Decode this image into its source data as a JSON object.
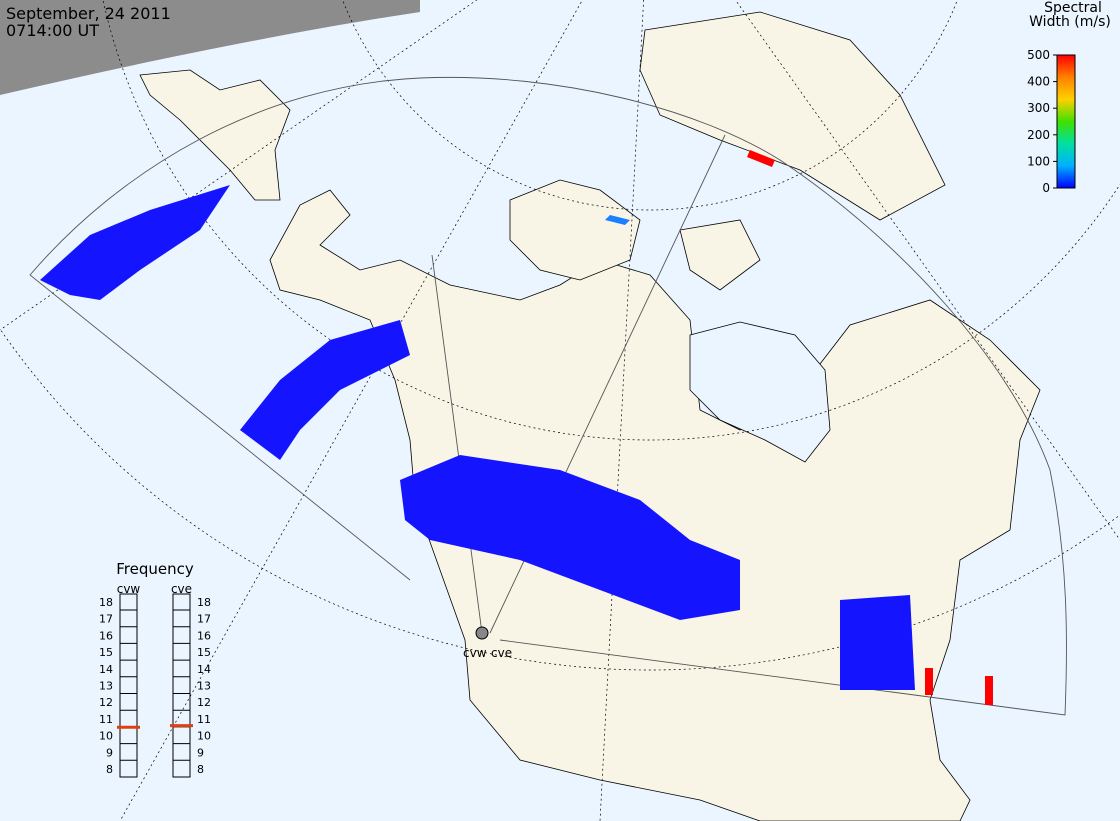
{
  "header": {
    "date": "September, 24 2011",
    "time": "0714:00 UT"
  },
  "colorbar": {
    "title_lines": [
      "Spectral",
      "Width (m/s)"
    ],
    "range": [
      0,
      500
    ],
    "ticks": [
      0,
      100,
      200,
      300,
      400,
      500
    ],
    "colors": [
      "#0000ff",
      "#00b0ff",
      "#00e0a0",
      "#40e000",
      "#ffd000",
      "#ff8000",
      "#ff0000"
    ]
  },
  "frequency": {
    "title": "Frequency",
    "range": [
      8,
      18
    ],
    "ticks": [
      8,
      9,
      10,
      11,
      12,
      13,
      14,
      15,
      16,
      17,
      18
    ],
    "marker_color": "#e04010",
    "radars": [
      {
        "name": "cvw",
        "value": 10.5
      },
      {
        "name": "cve",
        "value": 10.6
      }
    ]
  },
  "radar_labels": [
    "cvw",
    "cve"
  ]
}
